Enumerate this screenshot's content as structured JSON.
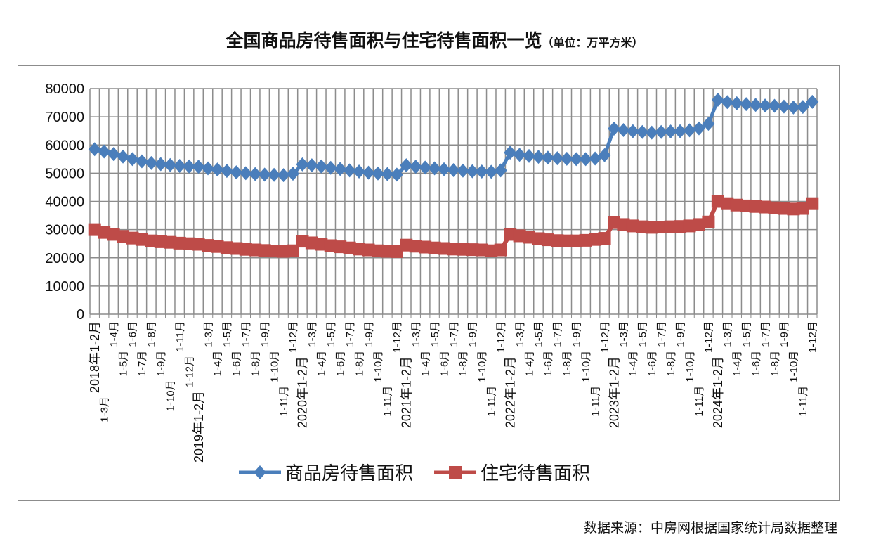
{
  "title": "全国商品房待售面积与住宅待售面积一览",
  "unit": "（单位：万平方米）",
  "source": "数据来源：中房网根据国家统计局数据整理",
  "chart_data": {
    "type": "line",
    "title": "全国商品房待售面积与住宅待售面积一览",
    "subtitle": "（单位：万平方米）",
    "xlabel": "",
    "ylabel": "",
    "ylim": [
      0,
      80000
    ],
    "yticks": [
      0,
      10000,
      20000,
      30000,
      40000,
      50000,
      60000,
      70000,
      80000
    ],
    "grid": true,
    "legend": "bottom",
    "years": [
      "2018",
      "2019",
      "2020",
      "2021",
      "2022",
      "2023",
      "2024"
    ],
    "months": [
      "1-2月",
      "1-3月",
      "1-4月",
      "1-5月",
      "1-6月",
      "1-7月",
      "1-8月",
      "1-9月",
      "1-10月",
      "1-11月",
      "1-12月"
    ],
    "series": [
      {
        "name": "商品房待售面积",
        "color": "#4a7ebb",
        "marker": "diamond",
        "values": [
          58500,
          57700,
          56800,
          55900,
          55000,
          54200,
          53600,
          53200,
          52900,
          52600,
          52400,
          52300,
          51700,
          51300,
          50800,
          50300,
          50000,
          49700,
          49500,
          49400,
          49300,
          49800,
          53100,
          52800,
          52400,
          51900,
          51500,
          51000,
          50600,
          50200,
          49900,
          49700,
          49500,
          52800,
          52300,
          52000,
          51700,
          51400,
          51100,
          50900,
          50700,
          50600,
          50500,
          51000,
          57300,
          56500,
          56100,
          55800,
          55500,
          55300,
          55100,
          55000,
          55000,
          55200,
          56400,
          65800,
          65300,
          64900,
          64600,
          64400,
          64600,
          64800,
          64900,
          65200,
          65900,
          67500,
          76000,
          75200,
          74800,
          74500,
          74200,
          74000,
          73900,
          73600,
          73300,
          73500,
          75300
        ]
      },
      {
        "name": "住宅待售面积",
        "color": "#be4b48",
        "marker": "square",
        "values": [
          30000,
          29000,
          28300,
          27600,
          27000,
          26500,
          26000,
          25700,
          25500,
          25200,
          25000,
          24800,
          24400,
          24000,
          23600,
          23300,
          23000,
          22800,
          22600,
          22400,
          22300,
          22500,
          25900,
          25300,
          24800,
          24300,
          23900,
          23500,
          23100,
          22800,
          22500,
          22300,
          22200,
          24500,
          24100,
          23800,
          23500,
          23300,
          23100,
          23000,
          22900,
          22800,
          22500,
          22800,
          28300,
          27800,
          27300,
          26800,
          26400,
          26100,
          26000,
          26000,
          26200,
          26500,
          26900,
          32500,
          31800,
          31300,
          31000,
          30800,
          30900,
          31000,
          31100,
          31300,
          31800,
          32700,
          40000,
          39200,
          38700,
          38400,
          38200,
          38000,
          37700,
          37500,
          37300,
          37500,
          39200
        ]
      }
    ]
  }
}
